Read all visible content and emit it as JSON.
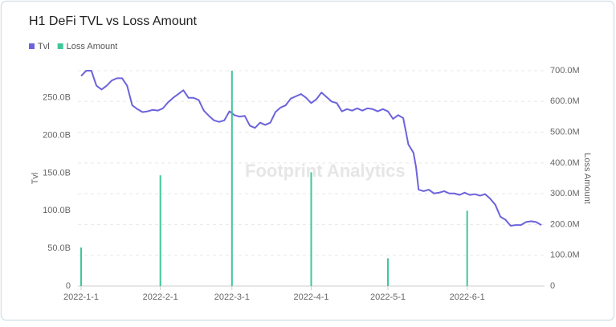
{
  "chart_data": {
    "type": "combo",
    "title": "H1 DeFi TVL vs Loss Amount",
    "watermark": "Footprint Analytics",
    "legend": "top-left",
    "grid": true,
    "ylabel": "Tvl",
    "y2label": "Loss Amount",
    "xlim": [
      "2022-1-1",
      "2022-6-30"
    ],
    "xticks": [
      "2022-1-1",
      "2022-2-1",
      "2022-3-1",
      "2022-4-1",
      "2022-5-1",
      "2022-6-1"
    ],
    "ylim": [
      0,
      286
    ],
    "yticks": [
      0,
      {
        "value": 50,
        "label": "50.0B"
      },
      {
        "value": 100,
        "label": "100.0B"
      },
      {
        "value": 150,
        "label": "150.0B"
      },
      {
        "value": 200,
        "label": "200.0B"
      },
      {
        "value": 250,
        "label": "250.0B"
      }
    ],
    "y2lim": [
      0,
      700
    ],
    "y2ticks": [
      0,
      {
        "value": 100,
        "label": "100.0M"
      },
      {
        "value": 200,
        "label": "200.0M"
      },
      {
        "value": 300,
        "label": "300.0M"
      },
      {
        "value": 400,
        "label": "400.0M"
      },
      {
        "value": 500,
        "label": "500.0M"
      },
      {
        "value": 600,
        "label": "600.0M"
      },
      {
        "value": 700,
        "label": "700.0M"
      }
    ],
    "series": [
      {
        "name": "Tvl",
        "type": "line",
        "color": "#6c63dc",
        "x": [
          "2022-1-1",
          "2022-1-3",
          "2022-1-5",
          "2022-1-7",
          "2022-1-9",
          "2022-1-11",
          "2022-1-13",
          "2022-1-15",
          "2022-1-17",
          "2022-1-19",
          "2022-1-21",
          "2022-1-23",
          "2022-1-25",
          "2022-1-27",
          "2022-1-29",
          "2022-1-31",
          "2022-2-2",
          "2022-2-4",
          "2022-2-6",
          "2022-2-8",
          "2022-2-10",
          "2022-2-12",
          "2022-2-14",
          "2022-2-16",
          "2022-2-18",
          "2022-2-20",
          "2022-2-22",
          "2022-2-24",
          "2022-2-26",
          "2022-2-28",
          "2022-3-2",
          "2022-3-4",
          "2022-3-6",
          "2022-3-8",
          "2022-3-10",
          "2022-3-12",
          "2022-3-14",
          "2022-3-16",
          "2022-3-18",
          "2022-3-20",
          "2022-3-22",
          "2022-3-24",
          "2022-3-26",
          "2022-3-28",
          "2022-3-30",
          "2022-4-1",
          "2022-4-3",
          "2022-4-5",
          "2022-4-7",
          "2022-4-9",
          "2022-4-11",
          "2022-4-13",
          "2022-4-15",
          "2022-4-17",
          "2022-4-19",
          "2022-4-21",
          "2022-4-23",
          "2022-4-25",
          "2022-4-27",
          "2022-4-29",
          "2022-5-1",
          "2022-5-3",
          "2022-5-5",
          "2022-5-7",
          "2022-5-9",
          "2022-5-11",
          "2022-5-12",
          "2022-5-13",
          "2022-5-15",
          "2022-5-17",
          "2022-5-19",
          "2022-5-21",
          "2022-5-23",
          "2022-5-25",
          "2022-5-27",
          "2022-5-29",
          "2022-5-31",
          "2022-6-2",
          "2022-6-4",
          "2022-6-6",
          "2022-6-8",
          "2022-6-10",
          "2022-6-12",
          "2022-6-14",
          "2022-6-16",
          "2022-6-18",
          "2022-6-20",
          "2022-6-22",
          "2022-6-24",
          "2022-6-26",
          "2022-6-28",
          "2022-6-30"
        ],
        "values": [
          279,
          286,
          286,
          266,
          261,
          266,
          273,
          276,
          276,
          266,
          240,
          235,
          231,
          232,
          234,
          233,
          236,
          244,
          250,
          255,
          260,
          250,
          250,
          247,
          233,
          226,
          220,
          218,
          220,
          232,
          227,
          225,
          226,
          213,
          210,
          217,
          214,
          217,
          231,
          237,
          240,
          249,
          252,
          255,
          250,
          243,
          248,
          257,
          251,
          245,
          243,
          232,
          235,
          233,
          236,
          233,
          236,
          235,
          232,
          235,
          232,
          222,
          227,
          223,
          188,
          177,
          158,
          128,
          126,
          128,
          123,
          124,
          126,
          123,
          123,
          121,
          124,
          121,
          122,
          120,
          122,
          116,
          108,
          92,
          88,
          80,
          81,
          81,
          85,
          86,
          85,
          81
        ]
      },
      {
        "name": "Loss Amount",
        "type": "bar",
        "axis": "y2",
        "color": "#3ec79b",
        "x": [
          "2022-1-1",
          "2022-2-1",
          "2022-3-1",
          "2022-4-1",
          "2022-5-1",
          "2022-6-1"
        ],
        "values": [
          125,
          360,
          700,
          370,
          90,
          245
        ]
      }
    ]
  }
}
